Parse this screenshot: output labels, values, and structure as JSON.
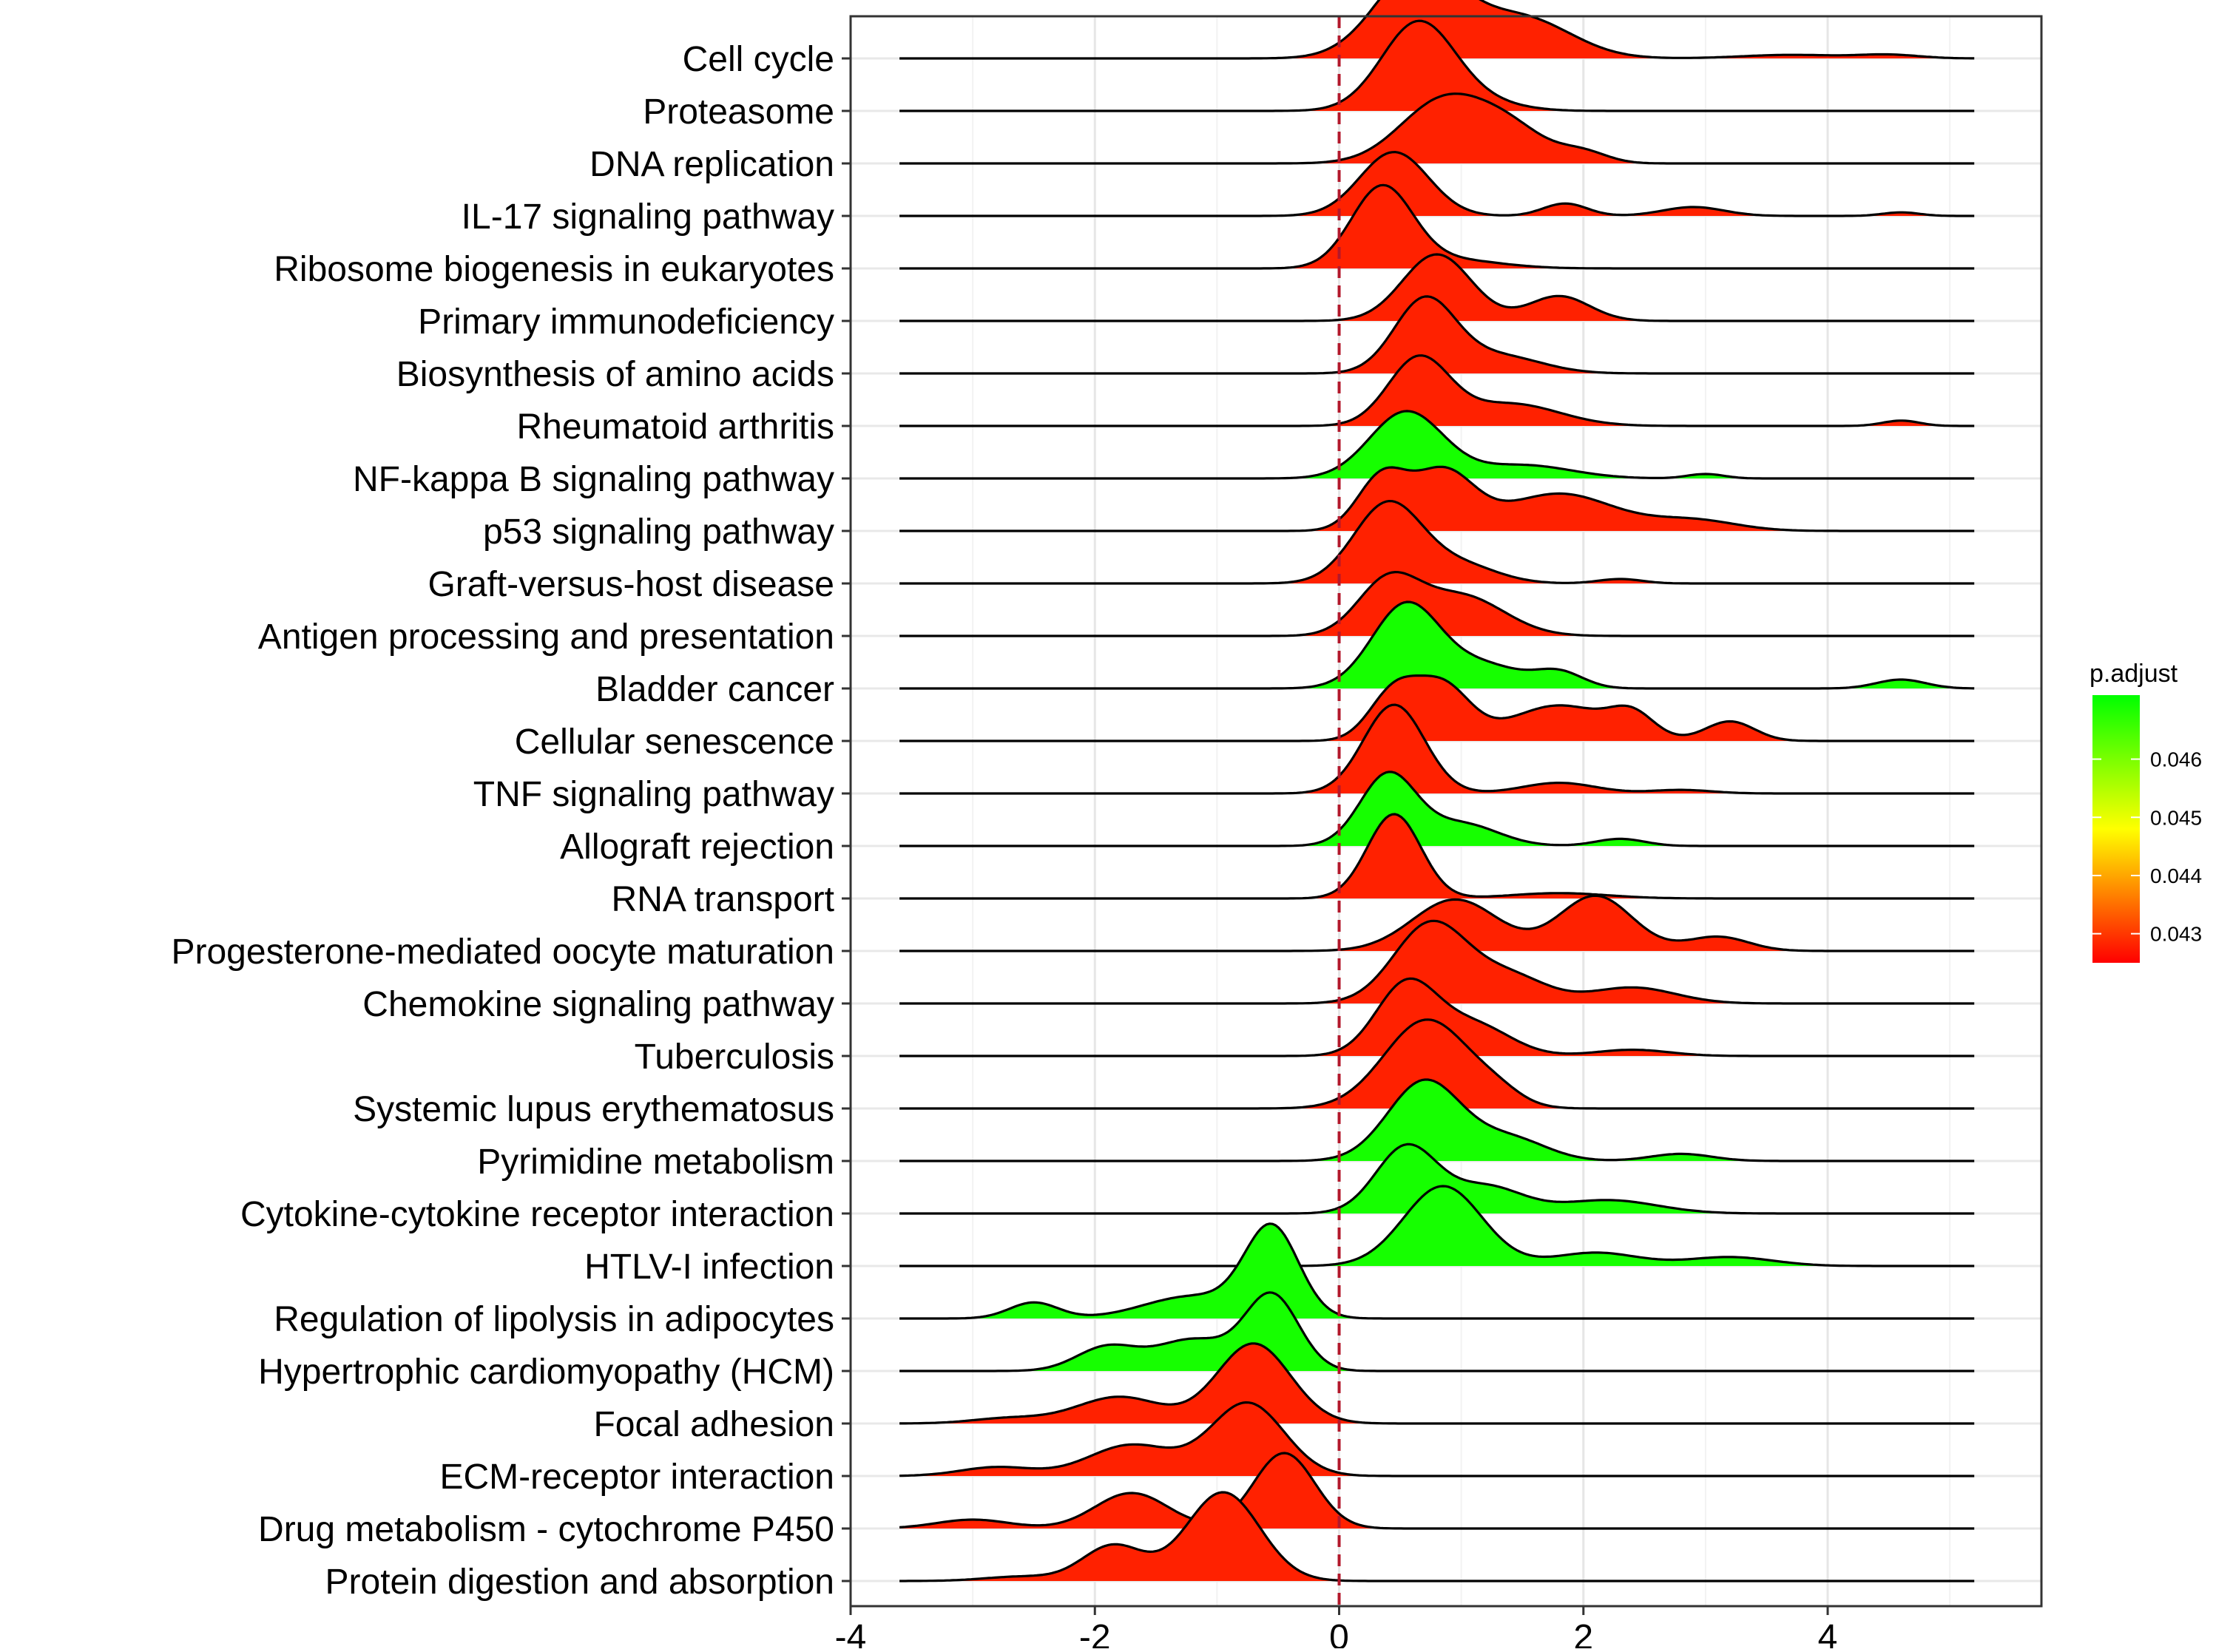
{
  "chart_data": {
    "type": "ridgeline",
    "xlim": [
      -4.0,
      5.75
    ],
    "x_ticks": [
      -4,
      -2,
      0,
      2,
      4
    ],
    "x_tick_labels": [
      "-4",
      "-2",
      "0",
      "2",
      "4"
    ],
    "reference_line": {
      "x": 0,
      "style": "dashed",
      "color": "#b2182b"
    },
    "grid": true,
    "legend": {
      "title": "p.adjust",
      "position": "right",
      "range": [
        0.0425,
        0.0471
      ],
      "ticks": [
        0.043,
        0.044,
        0.045,
        0.046
      ],
      "tick_labels": [
        "0.043",
        "0.044",
        "0.045",
        "0.046"
      ],
      "colors": {
        "low": "#ff0000",
        "mid": "#ffff00",
        "high": "#00ff00"
      }
    },
    "series": [
      {
        "name": "Cell cycle",
        "p_adjust": 0.0428,
        "peaks": [
          [
            0.65,
            1.0,
            0.35
          ],
          [
            1.5,
            0.45,
            0.4
          ],
          [
            3.7,
            0.04,
            0.4
          ],
          [
            4.5,
            0.04,
            0.25
          ]
        ]
      },
      {
        "name": "Proteasome",
        "p_adjust": 0.0428,
        "peaks": [
          [
            0.65,
            1.0,
            0.3
          ],
          [
            1.2,
            0.08,
            0.3
          ]
        ]
      },
      {
        "name": "DNA replication",
        "p_adjust": 0.0428,
        "peaks": [
          [
            0.85,
            0.7,
            0.35
          ],
          [
            1.4,
            0.35,
            0.3
          ],
          [
            2.0,
            0.12,
            0.2
          ]
        ]
      },
      {
        "name": "IL-17 signaling pathway",
        "p_adjust": 0.0428,
        "peaks": [
          [
            0.45,
            0.72,
            0.28
          ],
          [
            1.85,
            0.14,
            0.18
          ],
          [
            2.9,
            0.1,
            0.25
          ],
          [
            4.6,
            0.04,
            0.15
          ]
        ]
      },
      {
        "name": "Ribosome biogenesis in eukaryotes",
        "p_adjust": 0.0428,
        "peaks": [
          [
            0.35,
            0.9,
            0.25
          ],
          [
            0.9,
            0.1,
            0.4
          ]
        ]
      },
      {
        "name": "Primary immunodeficiency",
        "p_adjust": 0.0428,
        "peaks": [
          [
            0.8,
            0.75,
            0.28
          ],
          [
            1.8,
            0.28,
            0.25
          ]
        ]
      },
      {
        "name": "Biosynthesis of amino acids",
        "p_adjust": 0.0428,
        "peaks": [
          [
            0.7,
            0.82,
            0.25
          ],
          [
            1.3,
            0.2,
            0.35
          ]
        ]
      },
      {
        "name": "Rheumatoid arthritis",
        "p_adjust": 0.0428,
        "peaks": [
          [
            0.65,
            0.75,
            0.25
          ],
          [
            1.4,
            0.25,
            0.4
          ],
          [
            4.6,
            0.06,
            0.15
          ]
        ]
      },
      {
        "name": "NF-kappa B signaling pathway",
        "p_adjust": 0.0469,
        "peaks": [
          [
            0.55,
            0.75,
            0.3
          ],
          [
            1.5,
            0.15,
            0.4
          ],
          [
            3.0,
            0.05,
            0.15
          ]
        ]
      },
      {
        "name": "p53 signaling pathway",
        "p_adjust": 0.0428,
        "peaks": [
          [
            0.35,
            0.6,
            0.2
          ],
          [
            0.85,
            0.65,
            0.25
          ],
          [
            1.8,
            0.42,
            0.45
          ],
          [
            2.9,
            0.12,
            0.35
          ]
        ]
      },
      {
        "name": "Graft-versus-host disease",
        "p_adjust": 0.0428,
        "peaks": [
          [
            0.4,
            0.9,
            0.28
          ],
          [
            1.0,
            0.2,
            0.3
          ],
          [
            2.3,
            0.05,
            0.18
          ]
        ]
      },
      {
        "name": "Antigen processing and presentation",
        "p_adjust": 0.0428,
        "peaks": [
          [
            0.4,
            0.6,
            0.25
          ],
          [
            1.0,
            0.45,
            0.35
          ]
        ]
      },
      {
        "name": "Bladder cancer",
        "p_adjust": 0.0469,
        "peaks": [
          [
            0.55,
            0.95,
            0.28
          ],
          [
            1.2,
            0.25,
            0.3
          ],
          [
            1.8,
            0.18,
            0.2
          ],
          [
            4.6,
            0.1,
            0.2
          ]
        ]
      },
      {
        "name": "Cellular senescence",
        "p_adjust": 0.0428,
        "peaks": [
          [
            0.45,
            0.55,
            0.2
          ],
          [
            0.85,
            0.6,
            0.22
          ],
          [
            1.8,
            0.4,
            0.4
          ],
          [
            2.4,
            0.25,
            0.18
          ],
          [
            3.2,
            0.22,
            0.2
          ]
        ]
      },
      {
        "name": "TNF signaling pathway",
        "p_adjust": 0.0428,
        "peaks": [
          [
            0.45,
            1.0,
            0.25
          ],
          [
            1.8,
            0.12,
            0.3
          ],
          [
            2.8,
            0.04,
            0.25
          ]
        ]
      },
      {
        "name": "Allograft rejection",
        "p_adjust": 0.0469,
        "peaks": [
          [
            0.4,
            0.8,
            0.23
          ],
          [
            1.0,
            0.25,
            0.3
          ],
          [
            2.3,
            0.08,
            0.2
          ]
        ]
      },
      {
        "name": "RNA transport",
        "p_adjust": 0.0428,
        "peaks": [
          [
            0.45,
            0.95,
            0.22
          ],
          [
            1.8,
            0.06,
            0.4
          ]
        ]
      },
      {
        "name": "Progesterone-mediated oocyte maturation",
        "p_adjust": 0.0428,
        "peaks": [
          [
            0.95,
            0.58,
            0.35
          ],
          [
            2.1,
            0.62,
            0.3
          ],
          [
            3.1,
            0.16,
            0.25
          ]
        ]
      },
      {
        "name": "Chemokine signaling pathway",
        "p_adjust": 0.0428,
        "peaks": [
          [
            0.75,
            0.9,
            0.3
          ],
          [
            1.4,
            0.3,
            0.3
          ],
          [
            2.4,
            0.18,
            0.35
          ]
        ]
      },
      {
        "name": "Tuberculosis",
        "p_adjust": 0.0428,
        "peaks": [
          [
            0.55,
            0.8,
            0.25
          ],
          [
            1.1,
            0.35,
            0.3
          ],
          [
            2.4,
            0.07,
            0.3
          ]
        ]
      },
      {
        "name": "Systemic lupus erythematosus",
        "p_adjust": 0.0428,
        "peaks": [
          [
            0.72,
            1.0,
            0.35
          ],
          [
            1.3,
            0.12,
            0.2
          ]
        ]
      },
      {
        "name": "Pyrimidine metabolism",
        "p_adjust": 0.0469,
        "peaks": [
          [
            0.7,
            0.9,
            0.3
          ],
          [
            1.4,
            0.25,
            0.3
          ],
          [
            2.8,
            0.08,
            0.25
          ]
        ]
      },
      {
        "name": "Cytokine-cytokine receptor interaction",
        "p_adjust": 0.0469,
        "peaks": [
          [
            0.55,
            0.75,
            0.25
          ],
          [
            1.2,
            0.3,
            0.3
          ],
          [
            2.2,
            0.15,
            0.4
          ]
        ]
      },
      {
        "name": "HTLV-I infection",
        "p_adjust": 0.0469,
        "peaks": [
          [
            0.85,
            0.9,
            0.32
          ],
          [
            2.1,
            0.15,
            0.35
          ],
          [
            3.2,
            0.1,
            0.35
          ]
        ]
      },
      {
        "name": "Regulation of lipolysis in adipocytes",
        "p_adjust": 0.0469,
        "peaks": [
          [
            -0.55,
            1.0,
            0.22
          ],
          [
            -1.2,
            0.25,
            0.4
          ],
          [
            -2.5,
            0.18,
            0.2
          ]
        ]
      },
      {
        "name": "Hypertrophic cardiomyopathy (HCM)",
        "p_adjust": 0.0469,
        "peaks": [
          [
            -0.55,
            0.85,
            0.22
          ],
          [
            -1.2,
            0.35,
            0.3
          ],
          [
            -1.9,
            0.27,
            0.25
          ]
        ]
      },
      {
        "name": "Focal adhesion",
        "p_adjust": 0.0428,
        "peaks": [
          [
            -0.7,
            0.9,
            0.3
          ],
          [
            -1.8,
            0.3,
            0.35
          ],
          [
            -2.7,
            0.06,
            0.3
          ]
        ]
      },
      {
        "name": "ECM-receptor interaction",
        "p_adjust": 0.0428,
        "peaks": [
          [
            -0.75,
            0.82,
            0.3
          ],
          [
            -1.7,
            0.35,
            0.35
          ],
          [
            -2.8,
            0.1,
            0.3
          ]
        ]
      },
      {
        "name": "Drug metabolism - cytochrome P450",
        "p_adjust": 0.0428,
        "peaks": [
          [
            -0.45,
            0.85,
            0.25
          ],
          [
            -1.7,
            0.4,
            0.3
          ],
          [
            -3.0,
            0.1,
            0.3
          ]
        ]
      },
      {
        "name": "Protein digestion and absorption",
        "p_adjust": 0.0428,
        "peaks": [
          [
            -0.95,
            1.0,
            0.3
          ],
          [
            -1.85,
            0.4,
            0.25
          ],
          [
            -2.6,
            0.05,
            0.3
          ]
        ]
      }
    ]
  }
}
